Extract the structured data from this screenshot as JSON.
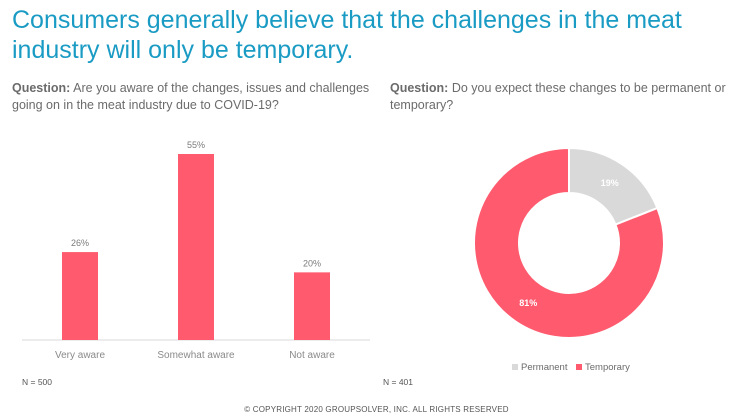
{
  "headline": "Consumers generally believe that the challenges in the meat industry will only be temporary.",
  "left": {
    "question_label": "Question:",
    "question_text": "Are you aware of the changes, issues and challenges going on in the meat industry due to COVID-19?",
    "n_label": "N = 500"
  },
  "right": {
    "question_label": "Question:",
    "question_text": "Do you expect these changes to be permanent or temporary?",
    "n_label": "N = 401"
  },
  "copyright": "© COPYRIGHT 2020 GROUPSOLVER, INC. ALL RIGHTS RESERVED",
  "chart_data": [
    {
      "type": "bar",
      "categories": [
        "Very aware",
        "Somewhat aware",
        "Not aware"
      ],
      "values": [
        26,
        55,
        20
      ],
      "data_labels": [
        "26%",
        "55%",
        "20%"
      ],
      "ylim": [
        0,
        55
      ],
      "grid": false,
      "color": "#ff5a6e"
    },
    {
      "type": "pie",
      "donut": true,
      "labels": [
        "Permanent",
        "Temporary"
      ],
      "values": [
        19,
        81
      ],
      "data_labels": [
        "19%",
        "81%"
      ],
      "colors": [
        "#d9d9d9",
        "#ff5a6e"
      ],
      "legend_position": "bottom"
    }
  ]
}
